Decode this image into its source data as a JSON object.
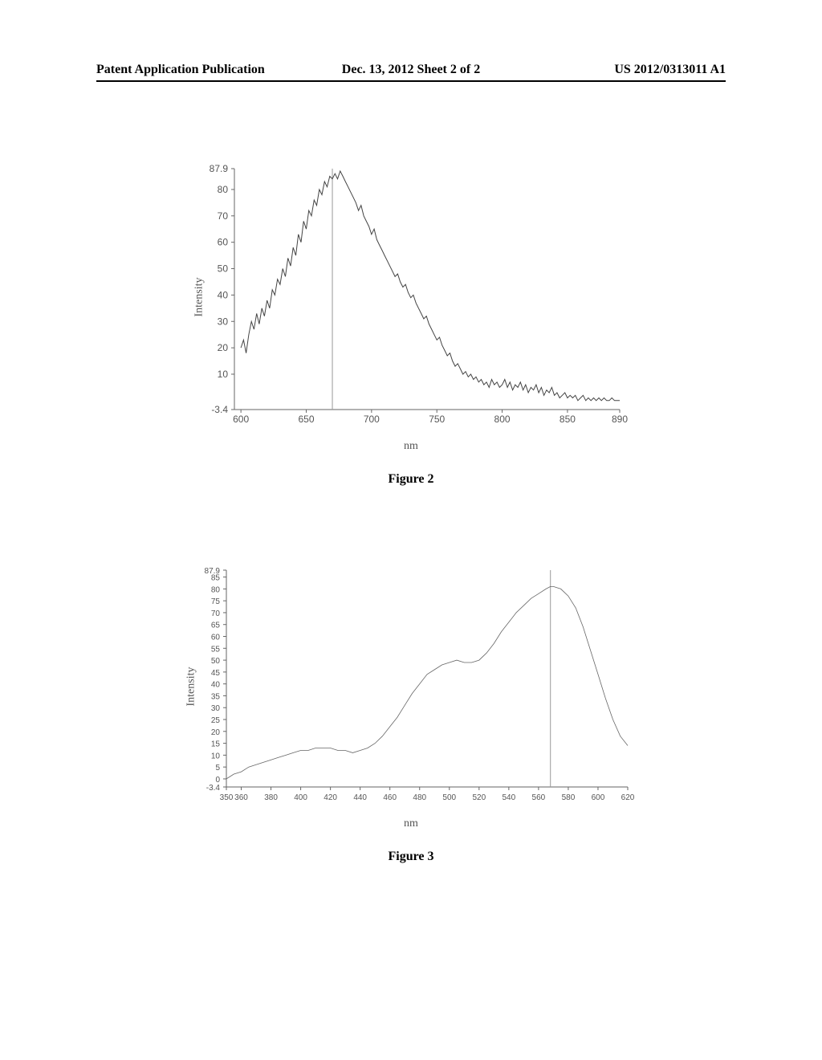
{
  "header": {
    "left": "Patent Application Publication",
    "center": "Dec. 13, 2012  Sheet 2 of 2",
    "right": "US 2012/0313011 A1"
  },
  "figure2": {
    "caption": "Figure 2",
    "type": "line",
    "ylabel": "Intensity",
    "xlabel": "nm",
    "yticks": [
      -3.4,
      10,
      20,
      30,
      40,
      50,
      60,
      70,
      80,
      87.9
    ],
    "xticks": [
      600.0,
      650,
      700,
      750,
      800,
      850,
      890.0
    ],
    "xlim": [
      595,
      890
    ],
    "ylim": [
      -3.4,
      87.9
    ],
    "marker_x": 670,
    "line_color": "#444444",
    "background_color": "#ffffff",
    "data": [
      [
        600,
        20
      ],
      [
        602,
        23
      ],
      [
        604,
        18
      ],
      [
        606,
        25
      ],
      [
        608,
        30
      ],
      [
        610,
        27
      ],
      [
        612,
        33
      ],
      [
        614,
        29
      ],
      [
        616,
        35
      ],
      [
        618,
        32
      ],
      [
        620,
        38
      ],
      [
        622,
        35
      ],
      [
        624,
        42
      ],
      [
        626,
        40
      ],
      [
        628,
        46
      ],
      [
        630,
        44
      ],
      [
        632,
        50
      ],
      [
        634,
        47
      ],
      [
        636,
        54
      ],
      [
        638,
        51
      ],
      [
        640,
        58
      ],
      [
        642,
        55
      ],
      [
        644,
        63
      ],
      [
        646,
        60
      ],
      [
        648,
        68
      ],
      [
        650,
        65
      ],
      [
        652,
        72
      ],
      [
        654,
        70
      ],
      [
        656,
        76
      ],
      [
        658,
        74
      ],
      [
        660,
        80
      ],
      [
        662,
        78
      ],
      [
        664,
        83
      ],
      [
        666,
        81
      ],
      [
        668,
        85
      ],
      [
        670,
        84
      ],
      [
        672,
        86
      ],
      [
        674,
        84
      ],
      [
        676,
        87
      ],
      [
        678,
        85
      ],
      [
        680,
        83
      ],
      [
        682,
        81
      ],
      [
        684,
        79
      ],
      [
        686,
        77
      ],
      [
        688,
        75
      ],
      [
        690,
        72
      ],
      [
        692,
        74
      ],
      [
        694,
        70
      ],
      [
        696,
        68
      ],
      [
        698,
        66
      ],
      [
        700,
        63
      ],
      [
        702,
        65
      ],
      [
        704,
        61
      ],
      [
        706,
        59
      ],
      [
        708,
        57
      ],
      [
        710,
        55
      ],
      [
        712,
        53
      ],
      [
        714,
        51
      ],
      [
        716,
        49
      ],
      [
        718,
        47
      ],
      [
        720,
        48
      ],
      [
        722,
        45
      ],
      [
        724,
        43
      ],
      [
        726,
        44
      ],
      [
        728,
        41
      ],
      [
        730,
        39
      ],
      [
        732,
        40
      ],
      [
        734,
        37
      ],
      [
        736,
        35
      ],
      [
        738,
        33
      ],
      [
        740,
        31
      ],
      [
        742,
        32
      ],
      [
        744,
        29
      ],
      [
        746,
        27
      ],
      [
        748,
        25
      ],
      [
        750,
        23
      ],
      [
        752,
        24
      ],
      [
        754,
        21
      ],
      [
        756,
        19
      ],
      [
        758,
        17
      ],
      [
        760,
        18
      ],
      [
        762,
        15
      ],
      [
        764,
        13
      ],
      [
        766,
        14
      ],
      [
        768,
        12
      ],
      [
        770,
        10
      ],
      [
        772,
        11
      ],
      [
        774,
        9
      ],
      [
        776,
        10
      ],
      [
        778,
        8
      ],
      [
        780,
        9
      ],
      [
        782,
        7
      ],
      [
        784,
        8
      ],
      [
        786,
        6
      ],
      [
        788,
        7
      ],
      [
        790,
        5
      ],
      [
        792,
        8
      ],
      [
        794,
        6
      ],
      [
        796,
        7
      ],
      [
        798,
        5
      ],
      [
        800,
        6
      ],
      [
        802,
        8
      ],
      [
        804,
        5
      ],
      [
        806,
        7
      ],
      [
        808,
        4
      ],
      [
        810,
        6
      ],
      [
        812,
        5
      ],
      [
        814,
        7
      ],
      [
        816,
        4
      ],
      [
        818,
        6
      ],
      [
        820,
        3
      ],
      [
        822,
        5
      ],
      [
        824,
        4
      ],
      [
        826,
        6
      ],
      [
        828,
        3
      ],
      [
        830,
        5
      ],
      [
        832,
        2
      ],
      [
        834,
        4
      ],
      [
        836,
        3
      ],
      [
        838,
        5
      ],
      [
        840,
        2
      ],
      [
        842,
        3
      ],
      [
        844,
        1
      ],
      [
        846,
        2
      ],
      [
        848,
        3
      ],
      [
        850,
        1
      ],
      [
        852,
        2
      ],
      [
        854,
        1
      ],
      [
        856,
        2
      ],
      [
        858,
        0
      ],
      [
        860,
        1
      ],
      [
        862,
        2
      ],
      [
        864,
        0
      ],
      [
        866,
        1
      ],
      [
        868,
        0
      ],
      [
        870,
        1
      ],
      [
        872,
        0
      ],
      [
        874,
        1
      ],
      [
        876,
        0
      ],
      [
        878,
        1
      ],
      [
        880,
        0
      ],
      [
        882,
        0
      ],
      [
        884,
        1
      ],
      [
        886,
        0
      ],
      [
        888,
        0
      ],
      [
        890,
        0
      ]
    ]
  },
  "figure3": {
    "caption": "Figure 3",
    "type": "line",
    "ylabel": "Intensity",
    "xlabel": "nm",
    "yticks": [
      -3.4,
      0,
      5,
      10,
      15,
      20,
      25,
      30,
      35,
      40,
      45,
      50,
      55,
      60,
      65,
      70,
      75,
      80,
      85,
      87.9
    ],
    "xticks": [
      350.0,
      360,
      380,
      400,
      420,
      440,
      460,
      480,
      500,
      520,
      540,
      560,
      580,
      600,
      620.0
    ],
    "xlim": [
      350,
      620
    ],
    "ylim": [
      -3.4,
      87.9
    ],
    "marker_x": 568,
    "line_color": "#666666",
    "background_color": "#ffffff",
    "data": [
      [
        350,
        0
      ],
      [
        355,
        2
      ],
      [
        360,
        3
      ],
      [
        365,
        5
      ],
      [
        370,
        6
      ],
      [
        375,
        7
      ],
      [
        380,
        8
      ],
      [
        385,
        9
      ],
      [
        390,
        10
      ],
      [
        395,
        11
      ],
      [
        400,
        12
      ],
      [
        405,
        12
      ],
      [
        410,
        13
      ],
      [
        415,
        13
      ],
      [
        420,
        13
      ],
      [
        425,
        12
      ],
      [
        430,
        12
      ],
      [
        435,
        11
      ],
      [
        440,
        12
      ],
      [
        445,
        13
      ],
      [
        450,
        15
      ],
      [
        455,
        18
      ],
      [
        460,
        22
      ],
      [
        465,
        26
      ],
      [
        470,
        31
      ],
      [
        475,
        36
      ],
      [
        480,
        40
      ],
      [
        485,
        44
      ],
      [
        490,
        46
      ],
      [
        495,
        48
      ],
      [
        500,
        49
      ],
      [
        505,
        50
      ],
      [
        510,
        49
      ],
      [
        515,
        49
      ],
      [
        520,
        50
      ],
      [
        525,
        53
      ],
      [
        530,
        57
      ],
      [
        535,
        62
      ],
      [
        540,
        66
      ],
      [
        545,
        70
      ],
      [
        550,
        73
      ],
      [
        555,
        76
      ],
      [
        560,
        78
      ],
      [
        565,
        80
      ],
      [
        568,
        81
      ],
      [
        570,
        81
      ],
      [
        575,
        80
      ],
      [
        580,
        77
      ],
      [
        585,
        72
      ],
      [
        590,
        64
      ],
      [
        595,
        54
      ],
      [
        600,
        44
      ],
      [
        605,
        34
      ],
      [
        610,
        25
      ],
      [
        615,
        18
      ],
      [
        620,
        14
      ]
    ]
  }
}
